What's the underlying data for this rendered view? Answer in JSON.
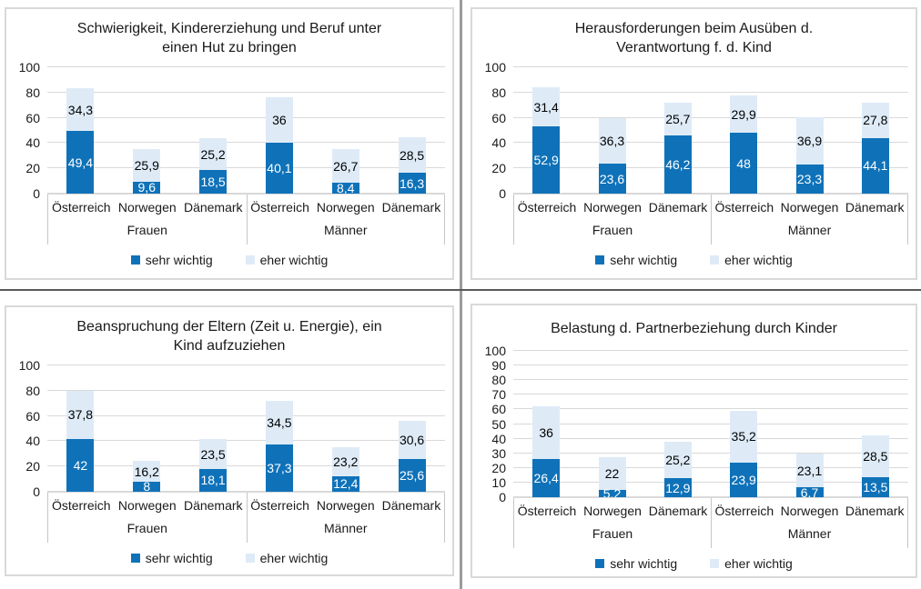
{
  "colors": {
    "series_dark": "#0f72b9",
    "series_light": "#deebf7",
    "gridline": "#d9d9d9",
    "axis_line": "#c6c6c6",
    "chart_border": "#d9d9d9",
    "column_divider": "#9b9b9b",
    "row_divider": "#595959"
  },
  "chart_data": [
    {
      "type": "bar",
      "stacked": true,
      "title": "Schwierigkeit, Kindererziehung und Beruf unter einen Hut zu bringen",
      "title_lines": [
        "Schwierigkeit, Kindererziehung und Beruf unter",
        "einen Hut zu bringen"
      ],
      "groups": [
        "Frauen",
        "Männer"
      ],
      "categories": [
        "Österreich",
        "Norwegen",
        "Dänemark",
        "Österreich",
        "Norwegen",
        "Dänemark"
      ],
      "series": [
        {
          "name": "sehr wichtig",
          "color": "#0f72b9",
          "values": [
            49.4,
            9.6,
            18.5,
            40.1,
            8.4,
            16.3
          ],
          "labels": [
            "49,4",
            "9,6",
            "18,5",
            "40,1",
            "8,4",
            "16,3"
          ]
        },
        {
          "name": "eher wichtig",
          "color": "#deebf7",
          "values": [
            34.3,
            25.9,
            25.2,
            36,
            26.7,
            28.5
          ],
          "labels": [
            "34,3",
            "25,9",
            "25,2",
            "36",
            "26,7",
            "28,5"
          ]
        }
      ],
      "ylim": [
        0,
        100
      ],
      "yticks": [
        0,
        20,
        40,
        60,
        80,
        100
      ],
      "grid": true,
      "legend": [
        "sehr wichtig",
        "eher wichtig"
      ],
      "legend_position": "bottom"
    },
    {
      "type": "bar",
      "stacked": true,
      "title": "Herausforderungen beim Ausüben d. Verantwortung f. d. Kind",
      "title_lines": [
        "Herausforderungen beim Ausüben d.",
        "Verantwortung f. d. Kind"
      ],
      "groups": [
        "Frauen",
        "Männer"
      ],
      "categories": [
        "Österreich",
        "Norwegen",
        "Dänemark",
        "Österreich",
        "Norwegen",
        "Dänemark"
      ],
      "series": [
        {
          "name": "sehr wichtig",
          "color": "#0f72b9",
          "values": [
            52.9,
            23.6,
            46.2,
            48,
            23.3,
            44.1
          ],
          "labels": [
            "52,9",
            "23,6",
            "46,2",
            "48",
            "23,3",
            "44,1"
          ]
        },
        {
          "name": "eher wichtig",
          "color": "#deebf7",
          "values": [
            31.4,
            36.3,
            25.7,
            29.9,
            36.9,
            27.8
          ],
          "labels": [
            "31,4",
            "36,3",
            "25,7",
            "29,9",
            "36,9",
            "27,8"
          ]
        }
      ],
      "ylim": [
        0,
        100
      ],
      "yticks": [
        0,
        20,
        40,
        60,
        80,
        100
      ],
      "grid": true,
      "legend": [
        "sehr wichtig",
        "eher wichtig"
      ],
      "legend_position": "bottom"
    },
    {
      "type": "bar",
      "stacked": true,
      "title": "Beanspruchung der Eltern (Zeit u. Energie), ein Kind aufzuziehen",
      "title_lines": [
        "Beanspruchung der Eltern (Zeit u. Energie), ein",
        "Kind aufzuziehen"
      ],
      "groups": [
        "Frauen",
        "Männer"
      ],
      "categories": [
        "Österreich",
        "Norwegen",
        "Dänemark",
        "Österreich",
        "Norwegen",
        "Dänemark"
      ],
      "series": [
        {
          "name": "sehr wichtig",
          "color": "#0f72b9",
          "values": [
            42,
            8,
            18.1,
            37.3,
            12.4,
            25.6
          ],
          "labels": [
            "42",
            "8",
            "18,1",
            "37,3",
            "12,4",
            "25,6"
          ]
        },
        {
          "name": "eher wichtig",
          "color": "#deebf7",
          "values": [
            37.8,
            16.2,
            23.5,
            34.5,
            23.2,
            30.6
          ],
          "labels": [
            "37,8",
            "16,2",
            "23,5",
            "34,5",
            "23,2",
            "30,6"
          ]
        }
      ],
      "ylim": [
        0,
        100
      ],
      "yticks": [
        0,
        20,
        40,
        60,
        80,
        100
      ],
      "grid": true,
      "legend": [
        "sehr wichtig",
        "eher wichtig"
      ],
      "legend_position": "bottom"
    },
    {
      "type": "bar",
      "stacked": true,
      "title": "Belastung d. Partnerbeziehung durch Kinder",
      "title_lines": [
        "Belastung d. Partnerbeziehung durch Kinder"
      ],
      "groups": [
        "Frauen",
        "Männer"
      ],
      "categories": [
        "Österreich",
        "Norwegen",
        "Dänemark",
        "Österreich",
        "Norwegen",
        "Dänemark"
      ],
      "series": [
        {
          "name": "sehr wichtig",
          "color": "#0f72b9",
          "values": [
            26.4,
            5.2,
            12.9,
            23.9,
            6.7,
            13.5
          ],
          "labels": [
            "26,4",
            "5,2",
            "12,9",
            "23,9",
            "6,7",
            "13,5"
          ]
        },
        {
          "name": "eher wichtig",
          "color": "#deebf7",
          "values": [
            36,
            22,
            25.2,
            35.2,
            23.1,
            28.5
          ],
          "labels": [
            "36",
            "22",
            "25,2",
            "35,2",
            "23,1",
            "28,5"
          ]
        }
      ],
      "ylim": [
        0,
        100
      ],
      "yticks": [
        0,
        10,
        20,
        30,
        40,
        50,
        60,
        70,
        80,
        90,
        100
      ],
      "grid": true,
      "legend": [
        "sehr wichtig",
        "eher wichtig"
      ],
      "legend_position": "bottom"
    }
  ]
}
